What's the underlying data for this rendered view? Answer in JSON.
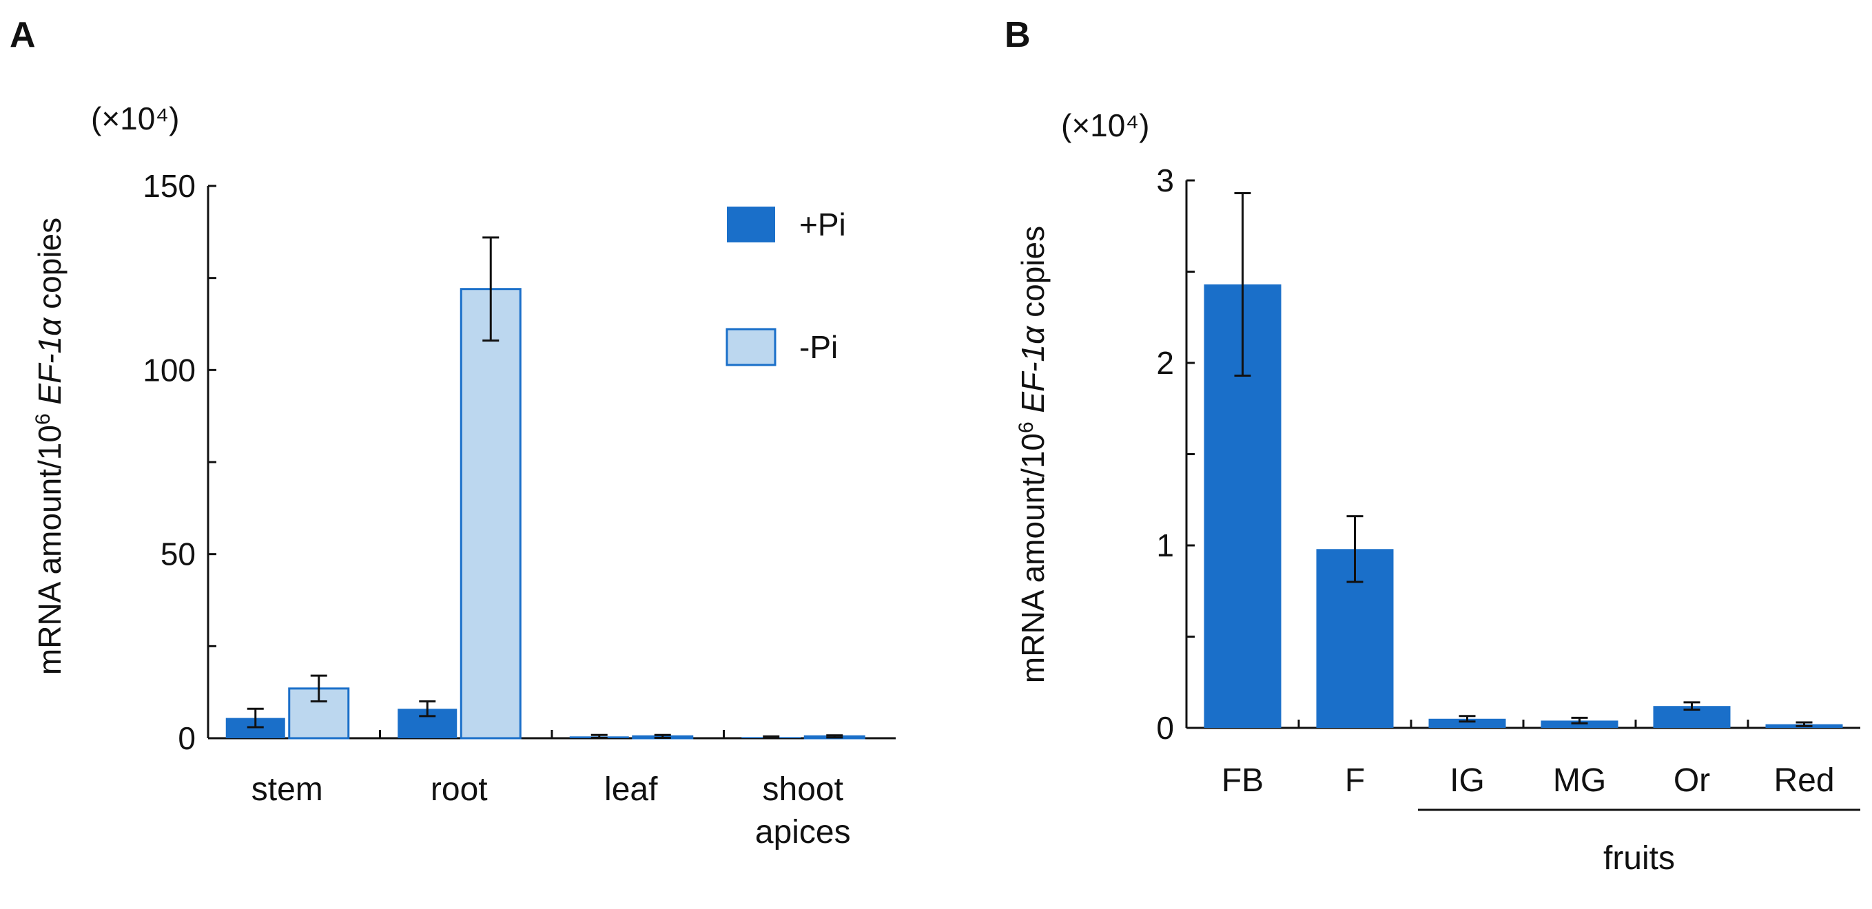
{
  "colors": {
    "plus": "#1a6fc9",
    "minus": "#bcd7ef",
    "minus_edge": "#1a6fc9"
  },
  "chart_data": [
    {
      "panel": "A",
      "type": "bar",
      "unit_label": "(×10⁴)",
      "ylabel_parts": [
        "mRNA amount/10",
        "6",
        " ",
        "EF-1α",
        " copies"
      ],
      "ylim": [
        0,
        150
      ],
      "yticks": [
        "0",
        "50",
        "100",
        "150"
      ],
      "ytick_values": [
        0,
        50,
        100,
        150
      ],
      "categories": [
        {
          "lines": [
            "stem"
          ]
        },
        {
          "lines": [
            "root"
          ]
        },
        {
          "lines": [
            "leaf"
          ]
        },
        {
          "lines": [
            "shoot",
            "apices"
          ]
        }
      ],
      "series": [
        {
          "name": "+Pi",
          "color": "plus",
          "values": [
            5.5,
            8,
            0.5,
            0.3
          ],
          "errors": [
            2.5,
            2,
            0.4,
            0.2
          ]
        },
        {
          "name": "-Pi",
          "color": "minus",
          "values": [
            13.5,
            122,
            0.5,
            0.5
          ],
          "errors": [
            3.5,
            14,
            0.4,
            0.3
          ]
        }
      ],
      "legend": [
        "+Pi",
        "-Pi"
      ],
      "legend_position": "top-right"
    },
    {
      "panel": "B",
      "type": "bar",
      "unit_label": "(×10⁴)",
      "ylabel_parts": [
        "mRNA amount/10",
        "6",
        " ",
        "EF-1α",
        " copies"
      ],
      "ylim": [
        0,
        3
      ],
      "yticks": [
        "0",
        "1",
        "2",
        "3"
      ],
      "ytick_values": [
        0,
        1,
        2,
        3
      ],
      "categories": [
        {
          "lines": [
            "FB"
          ]
        },
        {
          "lines": [
            "F"
          ]
        },
        {
          "lines": [
            "IG"
          ]
        },
        {
          "lines": [
            "MG"
          ]
        },
        {
          "lines": [
            "Or"
          ]
        },
        {
          "lines": [
            "Red"
          ]
        }
      ],
      "series": [
        {
          "name": "",
          "color": "plus",
          "values": [
            2.43,
            0.98,
            0.05,
            0.04,
            0.12,
            0.02
          ],
          "errors": [
            0.5,
            0.18,
            0.015,
            0.015,
            0.02,
            0.01
          ]
        }
      ],
      "group_label": {
        "text": "fruits",
        "from": 2,
        "to": 5
      }
    }
  ]
}
